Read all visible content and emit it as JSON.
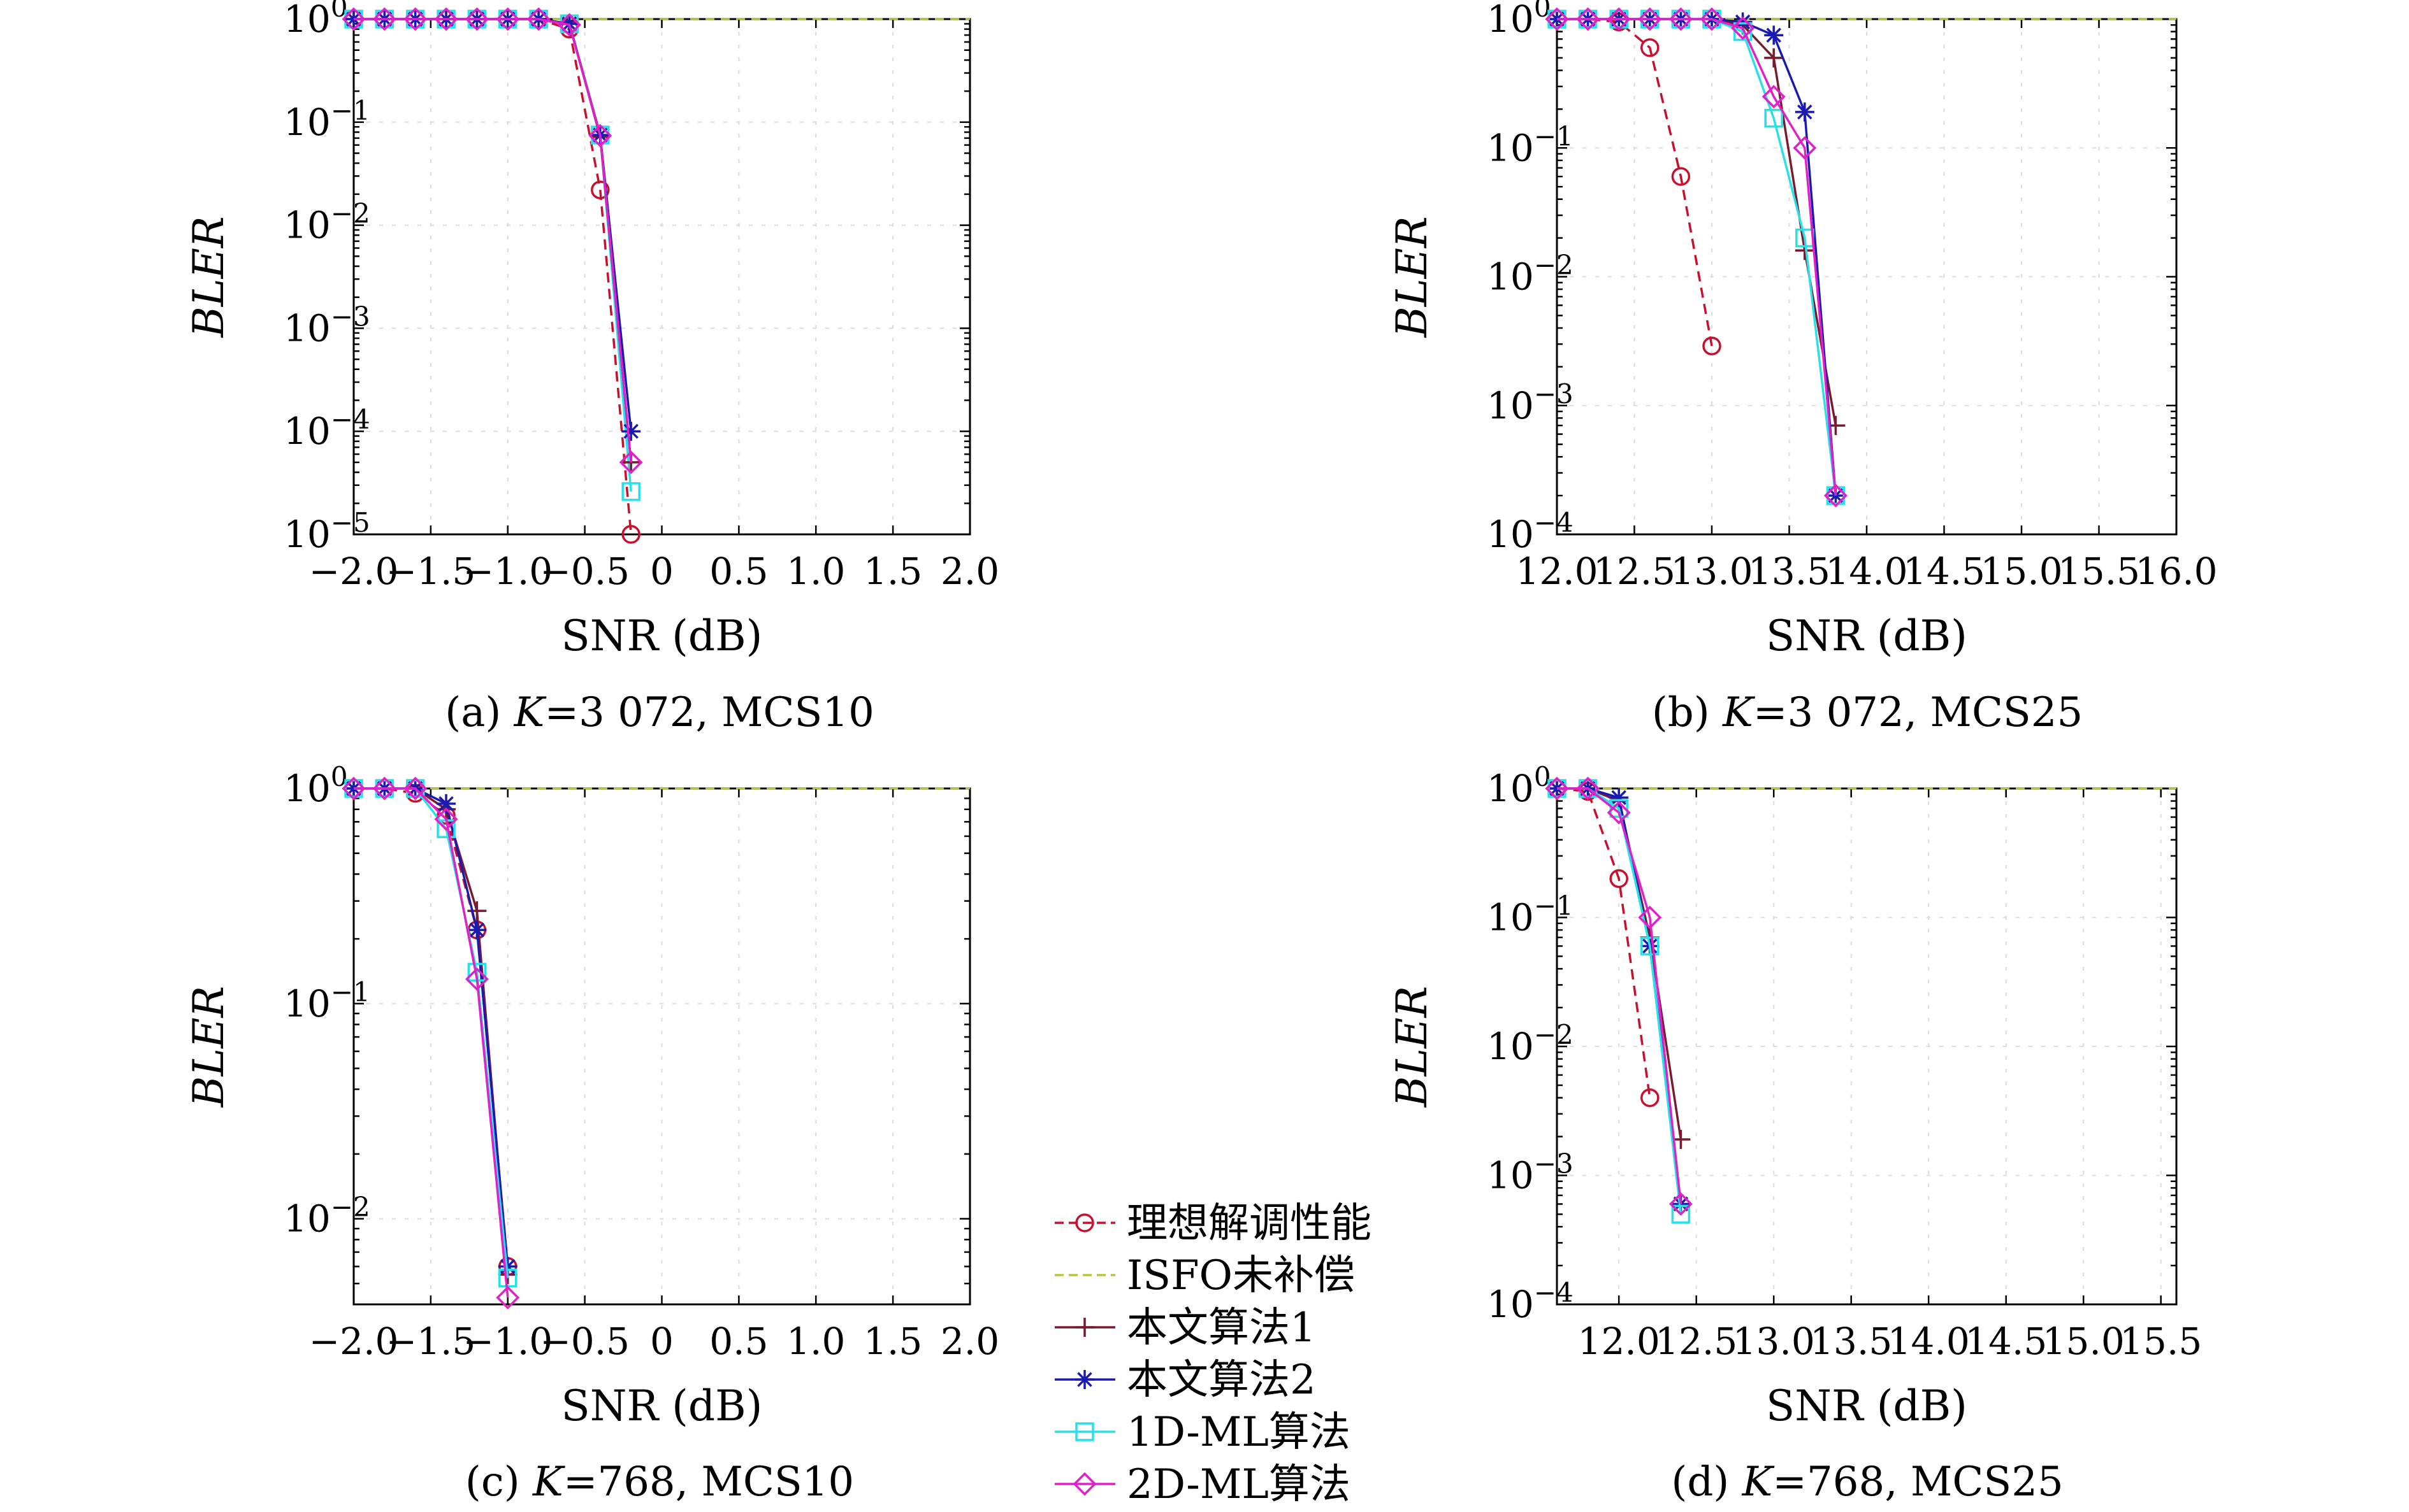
{
  "colors": {
    "ideal": "#c8102e",
    "isfo": "#b8c832",
    "alg1": "#7a1a2e",
    "alg2": "#1a1ab0",
    "ml1d": "#28e0e8",
    "ml2d": "#e020c8"
  },
  "legend": [
    {
      "key": "ideal",
      "label": "理想解调性能",
      "marker": "circle",
      "dash": true
    },
    {
      "key": "isfo",
      "label": "ISFO未补偿",
      "marker": "none",
      "dash": true
    },
    {
      "key": "alg1",
      "label": "本文算法1",
      "marker": "plus",
      "dash": false
    },
    {
      "key": "alg2",
      "label": "本文算法2",
      "marker": "asterisk",
      "dash": false
    },
    {
      "key": "ml1d",
      "label": "1D-ML算法",
      "marker": "square",
      "dash": false
    },
    {
      "key": "ml2d",
      "label": "2D-ML算法",
      "marker": "diamond",
      "dash": false
    }
  ],
  "chart_data": [
    {
      "id": "a",
      "type": "line",
      "caption_prefix": "(a) ",
      "caption_k": "K",
      "caption_rest": "=3 072, MCS10",
      "xlabel": "SNR (dB)",
      "ylabel": "BLER",
      "yscale": "log",
      "xlim": [
        -2.0,
        2.0
      ],
      "ylim": [
        1e-05,
        1
      ],
      "xticks": [
        -2.0,
        -1.5,
        -1.0,
        -0.5,
        0,
        0.5,
        1.0,
        1.5,
        2.0
      ],
      "xticklabels": [
        "−2.0",
        "−1.5",
        "−1.0",
        "−0.5",
        "0",
        "0.5",
        "1.0",
        "1.5",
        "2.0"
      ],
      "yticks": [
        0,
        -1,
        -2,
        -3,
        -4,
        -5
      ],
      "series": [
        {
          "key": "isfo",
          "x": [
            -2.0,
            2.0
          ],
          "y": [
            1,
            1
          ]
        },
        {
          "key": "ideal",
          "x": [
            -2.0,
            -1.8,
            -1.6,
            -1.4,
            -1.2,
            -1.0,
            -0.8,
            -0.6,
            -0.4,
            -0.2
          ],
          "y": [
            1,
            1,
            1,
            1,
            1,
            1,
            1,
            0.8,
            0.022,
            1e-05
          ]
        },
        {
          "key": "ml1d",
          "x": [
            -2.0,
            -1.8,
            -1.6,
            -1.4,
            -1.2,
            -1.0,
            -0.8,
            -0.6,
            -0.4,
            -0.2
          ],
          "y": [
            1,
            1,
            1,
            1,
            1,
            1,
            1,
            0.9,
            0.075,
            2.6e-05
          ]
        },
        {
          "key": "alg1",
          "x": [
            -2.0,
            -1.8,
            -1.6,
            -1.4,
            -1.2,
            -1.0,
            -0.8,
            -0.6,
            -0.4,
            -0.2
          ],
          "y": [
            1,
            1,
            1,
            1,
            1,
            1,
            1,
            0.9,
            0.072,
            5e-05
          ]
        },
        {
          "key": "alg2",
          "x": [
            -2.0,
            -1.8,
            -1.6,
            -1.4,
            -1.2,
            -1.0,
            -0.8,
            -0.6,
            -0.4,
            -0.2
          ],
          "y": [
            1,
            1,
            1,
            1,
            1,
            1,
            1,
            0.9,
            0.075,
            0.0001
          ]
        },
        {
          "key": "ml2d",
          "x": [
            -2.0,
            -1.8,
            -1.6,
            -1.4,
            -1.2,
            -1.0,
            -0.8,
            -0.6,
            -0.4,
            -0.2
          ],
          "y": [
            1,
            1,
            1,
            1,
            1,
            1,
            1,
            0.88,
            0.074,
            5e-05
          ]
        }
      ]
    },
    {
      "id": "b",
      "type": "line",
      "caption_prefix": "(b) ",
      "caption_k": "K",
      "caption_rest": "=3 072, MCS25",
      "xlabel": "SNR (dB)",
      "ylabel": "BLER",
      "yscale": "log",
      "xlim": [
        12.0,
        16.0
      ],
      "ylim": [
        0.0001,
        1
      ],
      "xticks": [
        12.0,
        12.5,
        13.0,
        13.5,
        14.0,
        14.5,
        15.0,
        15.5,
        16.0
      ],
      "xticklabels": [
        "12.0",
        "12.5",
        "13.0",
        "13.5",
        "14.0",
        "14.5",
        "15.0",
        "15.5",
        "16.0"
      ],
      "yticks": [
        0,
        -1,
        -2,
        -3,
        -4
      ],
      "series": [
        {
          "key": "isfo",
          "x": [
            12.0,
            16.0
          ],
          "y": [
            1,
            1
          ]
        },
        {
          "key": "ideal",
          "x": [
            12.0,
            12.2,
            12.4,
            12.6,
            12.8,
            13.0
          ],
          "y": [
            1,
            1,
            0.95,
            0.6,
            0.06,
            0.0029
          ]
        },
        {
          "key": "alg1",
          "x": [
            12.0,
            12.2,
            12.4,
            12.6,
            12.8,
            13.0,
            13.2,
            13.4,
            13.6,
            13.8
          ],
          "y": [
            1,
            1,
            1,
            1,
            1,
            1,
            0.9,
            0.5,
            0.016,
            0.0007
          ]
        },
        {
          "key": "alg2",
          "x": [
            12.0,
            12.2,
            12.4,
            12.6,
            12.8,
            13.0,
            13.2,
            13.4,
            13.6,
            13.8
          ],
          "y": [
            1,
            1,
            1,
            1,
            1,
            1,
            0.95,
            0.75,
            0.19,
            0.0002
          ]
        },
        {
          "key": "ml1d",
          "x": [
            12.0,
            12.2,
            12.4,
            12.6,
            12.8,
            13.0,
            13.2,
            13.4,
            13.6,
            13.8
          ],
          "y": [
            1,
            1,
            1,
            1,
            1,
            1,
            0.8,
            0.17,
            0.02,
            0.0002
          ]
        },
        {
          "key": "ml2d",
          "x": [
            12.0,
            12.2,
            12.4,
            12.6,
            12.8,
            13.0,
            13.2,
            13.4,
            13.6,
            13.8
          ],
          "y": [
            1,
            1,
            1,
            1,
            1,
            1,
            0.85,
            0.25,
            0.1,
            0.0002
          ]
        }
      ]
    },
    {
      "id": "c",
      "type": "line",
      "caption_prefix": "(c) ",
      "caption_k": "K",
      "caption_rest": "=768, MCS10",
      "xlabel": "SNR (dB)",
      "ylabel": "BLER",
      "yscale": "log",
      "xlim": [
        -2.0,
        2.0
      ],
      "ylim": [
        0.004,
        1
      ],
      "xticks": [
        -2.0,
        -1.5,
        -1.0,
        -0.5,
        0,
        0.5,
        1.0,
        1.5,
        2.0
      ],
      "xticklabels": [
        "−2.0",
        "−1.5",
        "−1.0",
        "−0.5",
        "0",
        "0.5",
        "1.0",
        "1.5",
        "2.0"
      ],
      "yticks": [
        0,
        -1,
        -2
      ],
      "series": [
        {
          "key": "isfo",
          "x": [
            -2.0,
            2.0
          ],
          "y": [
            1,
            1
          ]
        },
        {
          "key": "ideal",
          "x": [
            -2.0,
            -1.8,
            -1.6,
            -1.4,
            -1.2,
            -1.0
          ],
          "y": [
            1,
            1,
            0.95,
            0.75,
            0.22,
            0.006
          ]
        },
        {
          "key": "alg1",
          "x": [
            -2.0,
            -1.8,
            -1.6,
            -1.4,
            -1.2,
            -1.0
          ],
          "y": [
            1,
            1,
            1,
            0.8,
            0.27,
            0.0055
          ]
        },
        {
          "key": "alg2",
          "x": [
            -2.0,
            -1.8,
            -1.6,
            -1.4,
            -1.2,
            -1.0
          ],
          "y": [
            1,
            1,
            1,
            0.85,
            0.22,
            0.006
          ]
        },
        {
          "key": "ml1d",
          "x": [
            -2.0,
            -1.8,
            -1.6,
            -1.4,
            -1.2,
            -1.0
          ],
          "y": [
            1,
            1,
            1,
            0.65,
            0.14,
            0.0053
          ]
        },
        {
          "key": "ml2d",
          "x": [
            -2.0,
            -1.8,
            -1.6,
            -1.4,
            -1.2,
            -1.0
          ],
          "y": [
            1,
            1,
            1,
            0.72,
            0.13,
            0.0043
          ]
        }
      ]
    },
    {
      "id": "d",
      "type": "line",
      "caption_prefix": "(d) ",
      "caption_k": "K",
      "caption_rest": "=768, MCS25",
      "xlabel": "SNR (dB)",
      "ylabel": "BLER",
      "yscale": "log",
      "xlim": [
        11.6,
        15.6
      ],
      "ylim": [
        0.0001,
        1
      ],
      "xticks": [
        12.0,
        12.5,
        13.0,
        13.5,
        14.0,
        14.5,
        15.0,
        15.5
      ],
      "xticklabels": [
        "12.0",
        "12.5",
        "13.0",
        "13.5",
        "14.0",
        "14.5",
        "15.0",
        "15.5"
      ],
      "yticks": [
        0,
        -1,
        -2,
        -3,
        -4
      ],
      "series": [
        {
          "key": "isfo",
          "x": [
            11.6,
            15.6
          ],
          "y": [
            1,
            1
          ]
        },
        {
          "key": "ideal",
          "x": [
            11.6,
            11.8,
            12.0,
            12.2
          ],
          "y": [
            1,
            0.95,
            0.2,
            0.004
          ]
        },
        {
          "key": "alg1",
          "x": [
            11.6,
            11.8,
            12.0,
            12.2,
            12.4
          ],
          "y": [
            1,
            1,
            0.8,
            0.07,
            0.0019
          ]
        },
        {
          "key": "alg2",
          "x": [
            11.6,
            11.8,
            12.0,
            12.2,
            12.4
          ],
          "y": [
            1,
            1,
            0.85,
            0.06,
            0.0006
          ]
        },
        {
          "key": "ml1d",
          "x": [
            11.6,
            11.8,
            12.0,
            12.2,
            12.4
          ],
          "y": [
            1,
            1,
            0.7,
            0.06,
            0.0005
          ]
        },
        {
          "key": "ml2d",
          "x": [
            11.6,
            11.8,
            12.0,
            12.2,
            12.4
          ],
          "y": [
            1,
            1,
            0.65,
            0.1,
            0.0006
          ]
        }
      ]
    }
  ]
}
